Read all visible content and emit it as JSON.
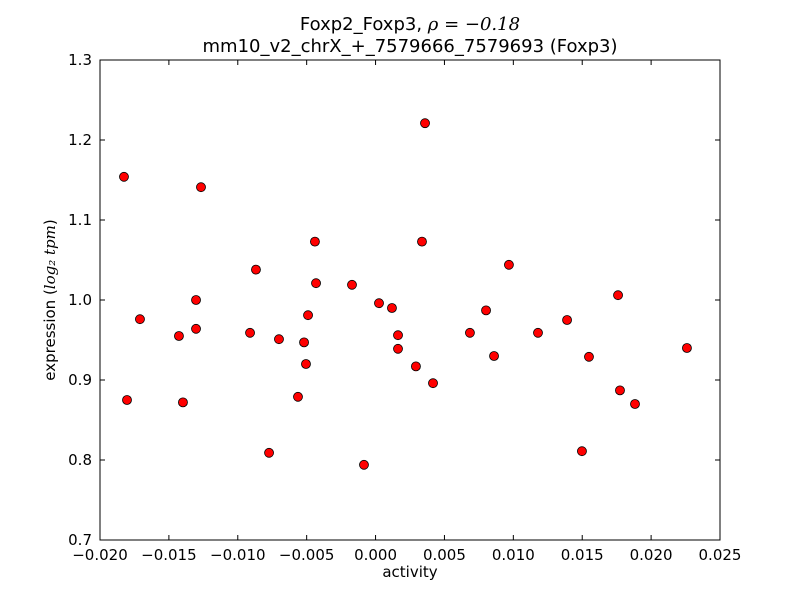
{
  "chart_data": {
    "type": "scatter",
    "title_line1": "Foxp2_Foxp3, ",
    "title_rho": "ρ = −0.18",
    "title_line2": "mm10_v2_chrX_+_7579666_7579693 (Foxp3)",
    "xlabel": "activity",
    "ylabel": "expression (",
    "ylabel_math": "log₂ tpm",
    "ylabel_end": ")",
    "xlim": [
      -0.02,
      0.025
    ],
    "ylim": [
      0.7,
      1.3
    ],
    "xticks": [
      -0.02,
      -0.015,
      -0.01,
      -0.005,
      0.0,
      0.005,
      0.01,
      0.015,
      0.02,
      0.025
    ],
    "xtick_labels": [
      "−0.020",
      "−0.015",
      "−0.010",
      "−0.005",
      "0.000",
      "0.005",
      "0.010",
      "0.015",
      "0.020",
      "0.025"
    ],
    "yticks": [
      0.7,
      0.8,
      0.9,
      1.0,
      1.1,
      1.2,
      1.3
    ],
    "ytick_labels": [
      "0.7",
      "0.8",
      "0.9",
      "1.0",
      "1.1",
      "1.2",
      "1.3"
    ],
    "grid": false,
    "marker_color": "#ff0000",
    "points": [
      [
        -0.01826,
        1.154
      ],
      [
        -0.01804,
        0.875
      ],
      [
        -0.0171,
        0.976
      ],
      [
        -0.01427,
        0.955
      ],
      [
        -0.01398,
        0.872
      ],
      [
        -0.01303,
        1.0
      ],
      [
        -0.01303,
        0.964
      ],
      [
        -0.01267,
        1.141
      ],
      [
        -0.00911,
        0.959
      ],
      [
        -0.00868,
        1.038
      ],
      [
        -0.00773,
        0.809
      ],
      [
        -0.00701,
        0.951
      ],
      [
        -0.00563,
        0.879
      ],
      [
        -0.00519,
        0.947
      ],
      [
        -0.00505,
        0.92
      ],
      [
        -0.0049,
        0.981
      ],
      [
        -0.0044,
        1.073
      ],
      [
        -0.00432,
        1.021
      ],
      [
        -0.00171,
        1.019
      ],
      [
        -0.00084,
        0.794
      ],
      [
        0.00025,
        0.996
      ],
      [
        0.00119,
        0.99
      ],
      [
        0.00163,
        0.956
      ],
      [
        0.00163,
        0.939
      ],
      [
        0.00293,
        0.917
      ],
      [
        0.00337,
        1.073
      ],
      [
        0.00359,
        1.221
      ],
      [
        0.00417,
        0.896
      ],
      [
        0.00685,
        0.959
      ],
      [
        0.00802,
        0.987
      ],
      [
        0.0086,
        0.93
      ],
      [
        0.00968,
        1.044
      ],
      [
        0.01179,
        0.959
      ],
      [
        0.0139,
        0.975
      ],
      [
        0.01498,
        0.811
      ],
      [
        0.01549,
        0.929
      ],
      [
        0.0176,
        1.006
      ],
      [
        0.01774,
        0.887
      ],
      [
        0.01883,
        0.87
      ],
      [
        0.0226,
        0.94
      ]
    ]
  }
}
